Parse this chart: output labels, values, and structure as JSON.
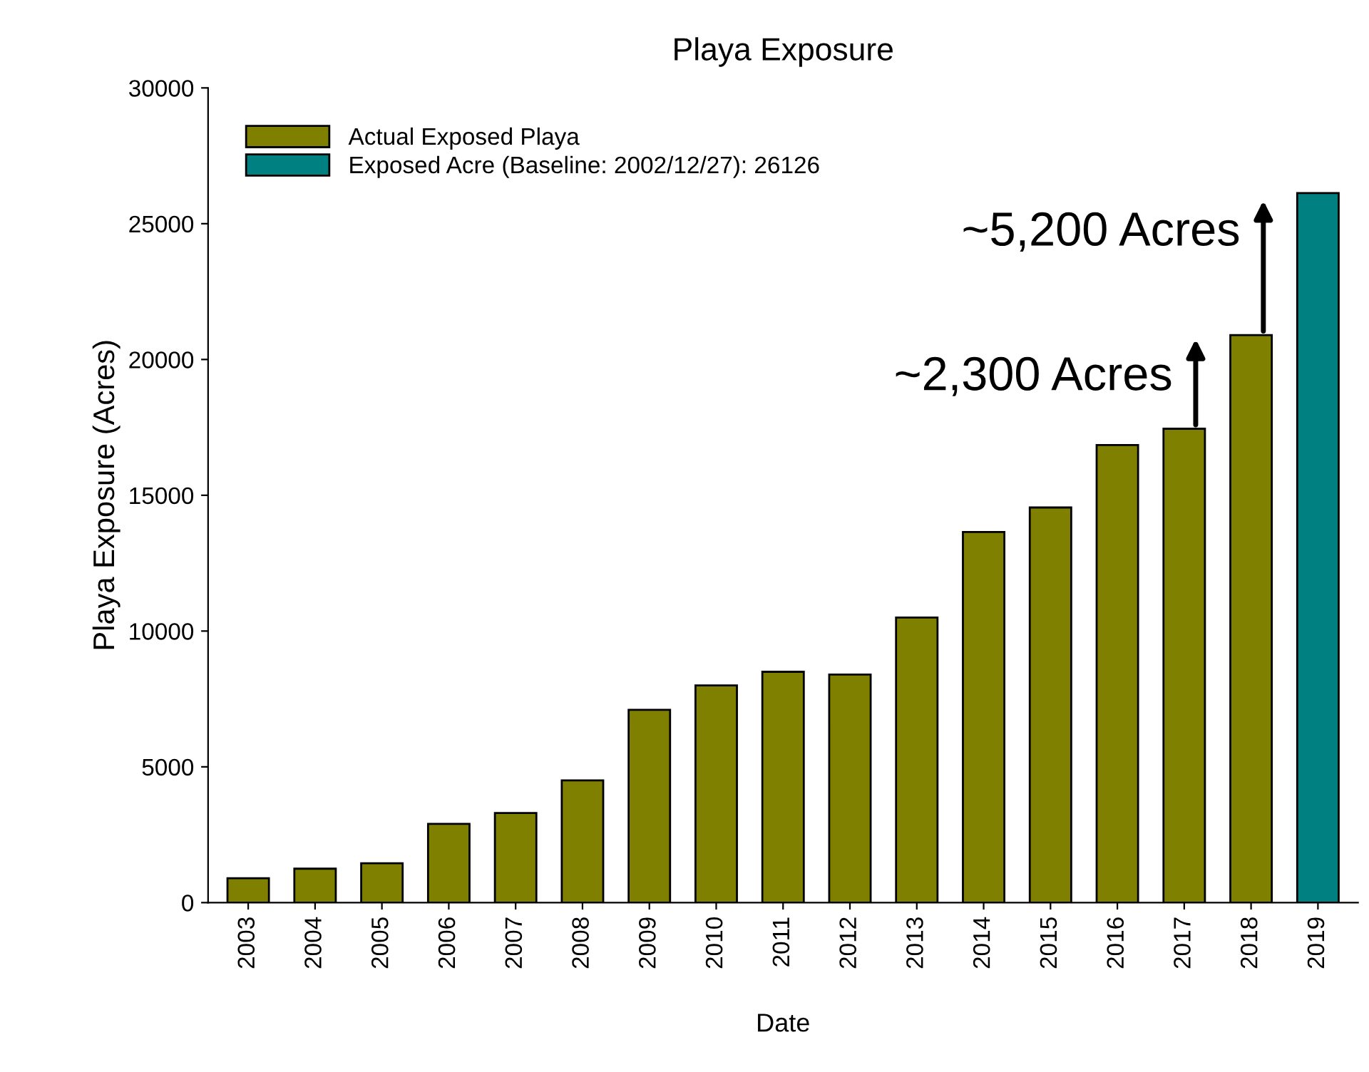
{
  "chart_data": {
    "type": "bar",
    "title": "Playa Exposure",
    "xlabel": "Date",
    "ylabel": "Playa Exposure (Acres)",
    "categories": [
      "2003",
      "2004",
      "2005",
      "2006",
      "2007",
      "2008",
      "2009",
      "2010",
      "2011",
      "2012",
      "2013",
      "2014",
      "2015",
      "2016",
      "2017",
      "2018",
      "2019"
    ],
    "series": [
      {
        "name": "Actual Exposed Playa",
        "color": "#808000",
        "values": [
          900,
          1250,
          1450,
          2900,
          3300,
          4500,
          7100,
          8000,
          8500,
          8400,
          10500,
          13650,
          14550,
          16850,
          17450,
          20900,
          null
        ]
      },
      {
        "name": "Exposed Acre (Baseline: 2002/12/27): 26126",
        "color": "#008080",
        "values": [
          null,
          null,
          null,
          null,
          null,
          null,
          null,
          null,
          null,
          null,
          null,
          null,
          null,
          null,
          null,
          null,
          26126
        ]
      }
    ],
    "ylim": [
      0,
      30000
    ],
    "yticks": [
      0,
      5000,
      10000,
      15000,
      20000,
      25000,
      30000
    ],
    "grid": false,
    "legend": "top left",
    "annotations": [
      "~2,300 Acres",
      "~5,200 Acres"
    ]
  }
}
